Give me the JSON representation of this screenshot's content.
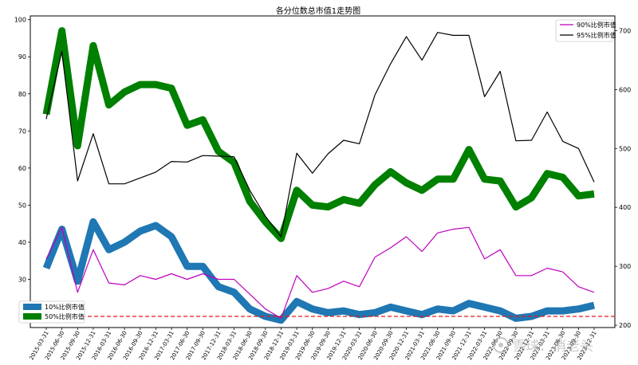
{
  "chart_data": {
    "type": "line",
    "title": "各分位数总市值1走势图",
    "x": [
      "2015-03-31",
      "2015-06-30",
      "2015-09-30",
      "2015-12-31",
      "2016-03-31",
      "2016-06-30",
      "2016-09-30",
      "2016-12-31",
      "2017-03-31",
      "2017-06-30",
      "2017-09-30",
      "2017-12-31",
      "2018-03-31",
      "2018-06-30",
      "2018-09-30",
      "2018-12-31",
      "2019-03-31",
      "2019-06-30",
      "2019-09-30",
      "2019-12-31",
      "2020-03-31",
      "2020-06-30",
      "2020-09-30",
      "2020-12-31",
      "2021-03-31",
      "2021-06-30",
      "2021-09-30",
      "2021-12-31",
      "2022-03-31",
      "2022-06-30",
      "2022-09-30",
      "2022-12-31",
      "2023-03-31",
      "2023-06-30",
      "2023-09-30",
      "2023-12-31"
    ],
    "left_axis": {
      "ylim": [
        17,
        101
      ],
      "ticks": [
        20,
        30,
        40,
        50,
        60,
        70,
        80,
        90,
        100
      ]
    },
    "right_axis": {
      "ylim": [
        196,
        725
      ],
      "ticks": [
        200,
        300,
        400,
        500,
        600,
        700
      ]
    },
    "reference_line": {
      "axis": "left",
      "value": 20,
      "color": "#e41a1c",
      "style": "dashed"
    },
    "series": [
      {
        "name": "10%比例市值",
        "axis": "left",
        "color": "#1f77b4",
        "width": 9,
        "values": [
          33,
          43.5,
          29.5,
          45.5,
          38,
          40,
          43,
          44.5,
          41.5,
          33.5,
          33.5,
          28,
          26.5,
          22,
          20,
          19,
          24,
          22,
          21,
          21.5,
          20.5,
          21,
          22.5,
          21.5,
          20.5,
          22,
          21.5,
          23.5,
          22.5,
          21.5,
          19.5,
          20,
          21.5,
          21.5,
          22,
          23
        ]
      },
      {
        "name": "50%比例市值",
        "axis": "left",
        "color": "#008000",
        "width": 9,
        "values": [
          74.5,
          97,
          66,
          93,
          77,
          80.5,
          82.5,
          82.5,
          81.5,
          71.5,
          73,
          64.5,
          61.5,
          51,
          45.5,
          41,
          54,
          50,
          49.5,
          51.5,
          50.5,
          55.5,
          59,
          56,
          54,
          57,
          57,
          65,
          57,
          56.5,
          49.5,
          52,
          58.5,
          57.5,
          52.5,
          53
        ]
      },
      {
        "name": "90%比例市值",
        "axis": "left",
        "color": "#bf00bf",
        "width": 1.2,
        "values": [
          35.5,
          44,
          26.5,
          38,
          29,
          28.5,
          31,
          30,
          31.5,
          30,
          31.5,
          30,
          30,
          26,
          22,
          19.5,
          31,
          26.5,
          27.5,
          29.5,
          28,
          36,
          38.5,
          41.5,
          37.5,
          42.5,
          43.5,
          44,
          35.5,
          38,
          31,
          31,
          33,
          32,
          28,
          26.5
        ]
      },
      {
        "name": "95%比例市值",
        "axis": "right",
        "color": "#000000",
        "width": 1.2,
        "values": [
          550,
          665,
          445,
          525,
          440,
          440,
          450,
          460,
          478,
          477,
          488,
          487,
          486,
          429,
          385,
          350,
          492,
          458,
          491,
          514,
          508,
          591,
          644,
          690,
          650,
          697,
          692,
          692,
          588,
          631,
          513,
          514,
          562,
          512,
          500,
          443
        ]
      }
    ],
    "legend": [
      {
        "location": "top-right",
        "entries": [
          "90%比例市值",
          "95%比例市值"
        ]
      },
      {
        "location": "bottom-left",
        "entries": [
          "10%比例市值",
          "50%比例市值"
        ]
      }
    ],
    "grid": false
  },
  "watermark": {
    "text": "雪球：俏老头",
    "icon": "snowball-logo-icon"
  }
}
